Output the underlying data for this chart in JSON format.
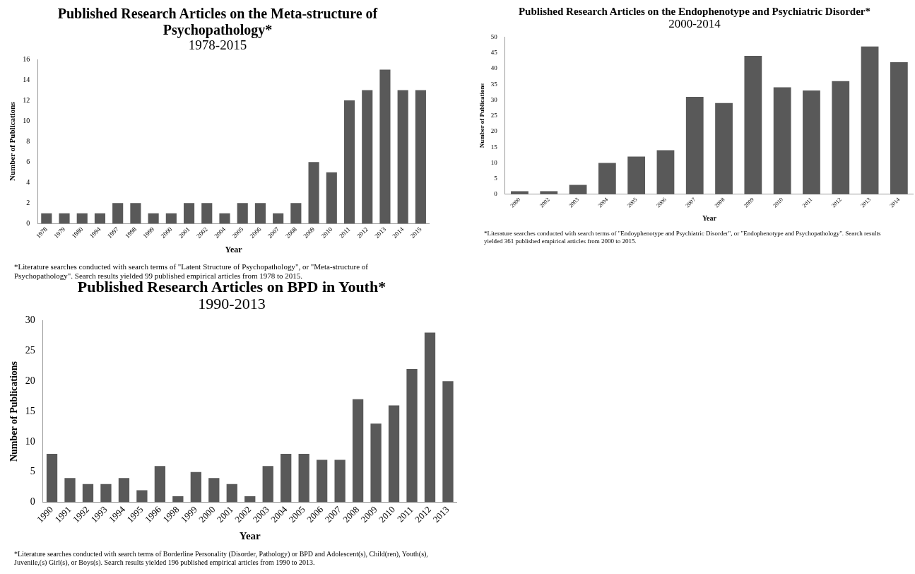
{
  "chart_data": [
    {
      "type": "bar",
      "title": "Published Research Articles on the Meta-structure of Psychopathology*",
      "subtitle": "1978-2015",
      "xlabel": "Year",
      "ylabel": "Number of Publications",
      "categories": [
        "1978",
        "1979",
        "1980",
        "1994",
        "1997",
        "1998",
        "1999",
        "2000",
        "2001",
        "2002",
        "2004",
        "2005",
        "2006",
        "2007",
        "2008",
        "2009",
        "2010",
        "2011",
        "2012",
        "2013",
        "2014",
        "2015"
      ],
      "values": [
        1,
        1,
        1,
        1,
        2,
        2,
        1,
        1,
        2,
        2,
        1,
        2,
        2,
        1,
        2,
        6,
        5,
        12,
        13,
        15,
        13,
        13
      ],
      "color": "#595959",
      "ylim": [
        0,
        16
      ],
      "yticks": [
        0,
        2,
        4,
        6,
        8,
        10,
        12,
        14,
        16
      ],
      "annotations": [
        "*Literature searches conducted with search terms of \"Latent Structure of Psychopathology\",  or \"Meta-structure of Psychopathology\".  Search results yielded 99 published empirical articles from 1978 to 2015."
      ]
    },
    {
      "type": "bar",
      "title": "Published Research Articles on the Endophenotype and Psychiatric Disorder*",
      "subtitle": "2000-2014",
      "xlabel": "Year",
      "ylabel": "Number of Publications",
      "categories": [
        "2000",
        "2002",
        "2003",
        "2004",
        "2005",
        "2006",
        "2007",
        "2008",
        "2009",
        "2010",
        "2011",
        "2012",
        "2013",
        "2014"
      ],
      "values": [
        1,
        1,
        3,
        10,
        12,
        14,
        31,
        29,
        44,
        34,
        33,
        36,
        47,
        42
      ],
      "color": "#595959",
      "ylim": [
        0,
        50
      ],
      "yticks": [
        0,
        5,
        10,
        15,
        20,
        25,
        30,
        35,
        40,
        45,
        50
      ],
      "annotations": [
        "*Literature searches conducted with search terms of \"Endoyphenotype and Psychiatric Disorder\", or \"Endophenotype and Psychopathology\".  Search results yielded 361 published empirical articles from 2000 to 2015."
      ]
    },
    {
      "type": "bar",
      "title": "Published Research Articles on BPD in Youth*",
      "subtitle": "1990-2013",
      "xlabel": "Year",
      "ylabel": "Number of Publications",
      "categories": [
        "1990",
        "1991",
        "1992",
        "1993",
        "1994",
        "1995",
        "1996",
        "1998",
        "1999",
        "2000",
        "2001",
        "2002",
        "2003",
        "2004",
        "2005",
        "2006",
        "2007",
        "2008",
        "2009",
        "2010",
        "2011",
        "2012",
        "2013"
      ],
      "values": [
        8,
        4,
        3,
        3,
        4,
        2,
        6,
        1,
        5,
        4,
        3,
        1,
        6,
        8,
        8,
        7,
        7,
        17,
        13,
        16,
        22,
        28,
        20
      ],
      "color": "#595959",
      "ylim": [
        0,
        30
      ],
      "yticks": [
        0,
        5,
        10,
        15,
        20,
        25,
        30
      ],
      "annotations": [
        "*Literature searches conducted with search terms of Borderline Personality (Disorder, Pathology) or BPD  and Adolescent(s), Child(ren),  Youth(s), Juvenile,(s) Girl(s),  or Boys(s).  Search results yielded 196 published empirical articles from 1990  to 2013."
      ]
    }
  ]
}
